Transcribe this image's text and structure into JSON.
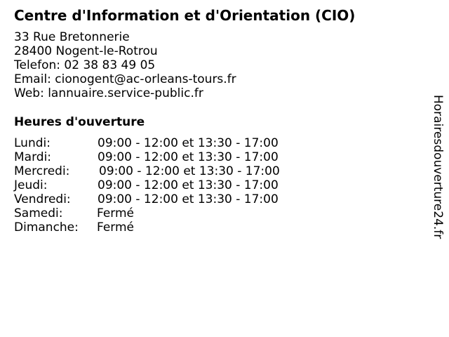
{
  "title": "Centre d'Information et d'Orientation (CIO)",
  "address": {
    "street": "33 Rue Bretonnerie",
    "city": "28400 Nogent-le-Rotrou",
    "phone": "Telefon: 02 38 83 49 05",
    "email": "Email: cionogent@ac-orleans-tours.fr",
    "web": "Web: lannuaire.service-public.fr"
  },
  "hours_heading": "Heures d'ouverture",
  "hours": [
    {
      "day": "Lundi:",
      "time": "09:00 - 12:00 et 13:30 - 17:00"
    },
    {
      "day": "Mardi:",
      "time": "09:00 - 12:00 et 13:30 - 17:00"
    },
    {
      "day": "Mercredi:",
      "time": "09:00 - 12:00 et 13:30 - 17:00"
    },
    {
      "day": "Jeudi:",
      "time": "09:00 - 12:00 et 13:30 - 17:00"
    },
    {
      "day": "Vendredi:",
      "time": "09:00 - 12:00 et 13:30 - 17:00"
    },
    {
      "day": "Samedi:",
      "time": "Fermé"
    },
    {
      "day": "Dimanche:",
      "time": "Fermé"
    }
  ],
  "watermark": "Horairesdouverture24.fr"
}
